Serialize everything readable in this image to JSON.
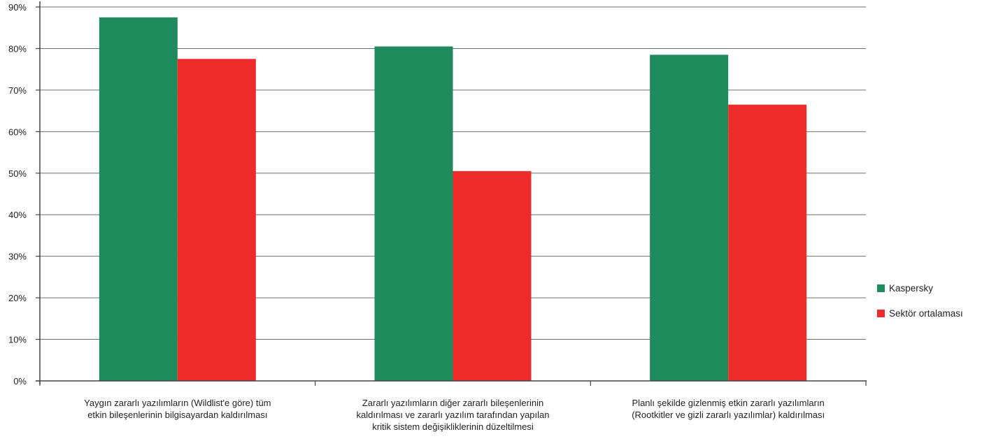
{
  "chart_data": {
    "type": "bar",
    "title": "",
    "xlabel": "",
    "ylabel": "",
    "ylim": [
      0,
      90
    ],
    "yticks": [
      "0%",
      "10%",
      "20%",
      "30%",
      "40%",
      "50%",
      "60%",
      "70%",
      "80%",
      "90%"
    ],
    "ytick_values": [
      0,
      10,
      20,
      30,
      40,
      50,
      60,
      70,
      80,
      90
    ],
    "grid": true,
    "legend_position": "right",
    "categories": [
      [
        "Yaygın zararlı yazılımların (Wildlist'e göre) tüm",
        "etkin bileşenlerinin bilgisayardan kaldırılması"
      ],
      [
        "Zararlı yazılımların diğer zararlı bileşenlerinin",
        "kaldırılması ve zararlı yazılım tarafından yapılan",
        "kritik sistem değişikliklerinin düzeltilmesi"
      ],
      [
        "Planlı şekilde gizlenmiş etkin zararlı yazılımların",
        "(Rootkitler ve gizli zararlı yazılımlar) kaldırılması"
      ]
    ],
    "series": [
      {
        "name": "Kaspersky",
        "color": "#1f8a5b",
        "values": [
          87.5,
          80.5,
          78.5
        ]
      },
      {
        "name": "Sektör ortalaması",
        "color": "#ee2b2b",
        "values": [
          77.5,
          50.5,
          66.5
        ]
      }
    ]
  }
}
